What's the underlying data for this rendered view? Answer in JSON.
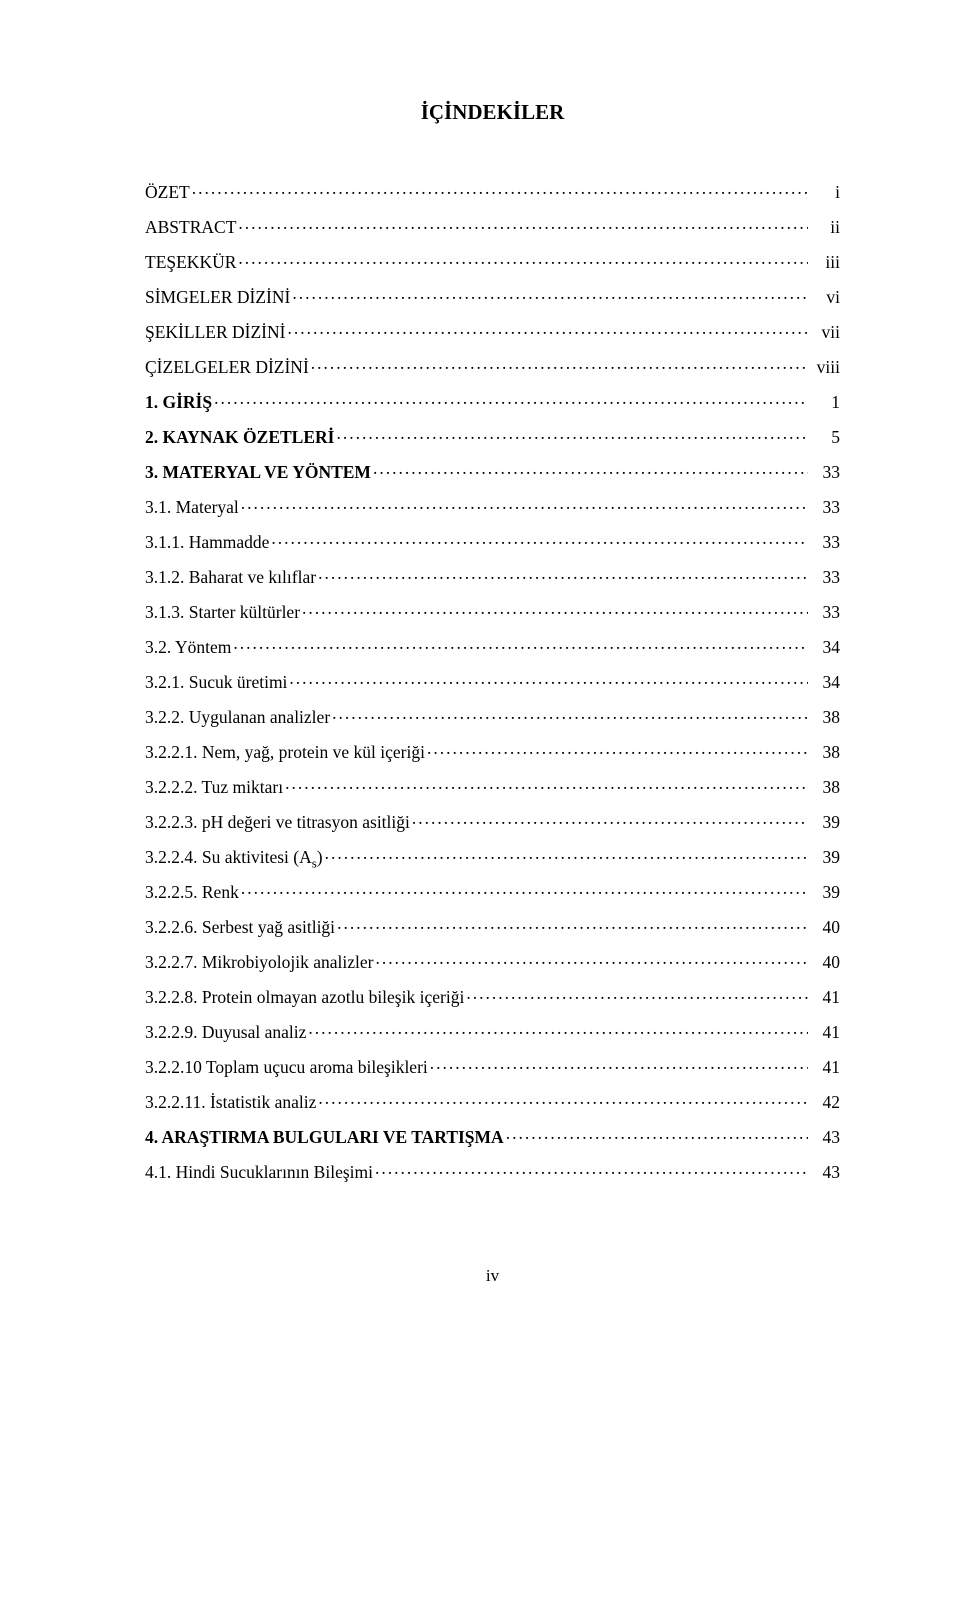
{
  "title": "İÇİNDEKİLER",
  "footer_page": "iv",
  "entries": [
    {
      "label": "ÖZET",
      "page": "i",
      "bold": false
    },
    {
      "label": "ABSTRACT",
      "page": "ii",
      "bold": false
    },
    {
      "label": "TEŞEKKÜR",
      "page": "iii",
      "bold": false
    },
    {
      "label": "SİMGELER DİZİNİ",
      "page": "vi",
      "bold": false
    },
    {
      "label": "ŞEKİLLER DİZİNİ",
      "page": "vii",
      "bold": false
    },
    {
      "label": "ÇİZELGELER DİZİNİ",
      "page": "viii",
      "bold": false
    },
    {
      "label": "1. GİRİŞ",
      "page": "1",
      "bold": true
    },
    {
      "label": "2. KAYNAK ÖZETLERİ",
      "page": "5",
      "bold": true
    },
    {
      "label": "3. MATERYAL VE YÖNTEM",
      "page": "33",
      "bold": true
    },
    {
      "label": "3.1. Materyal",
      "page": "33",
      "bold": false
    },
    {
      "label": "3.1.1. Hammadde",
      "page": "33",
      "bold": false
    },
    {
      "label": "3.1.2. Baharat ve kılıflar",
      "page": "33",
      "bold": false
    },
    {
      "label": "3.1.3. Starter kültürler",
      "page": "33",
      "bold": false
    },
    {
      "label": "3.2. Yöntem",
      "page": "34",
      "bold": false
    },
    {
      "label": "3.2.1. Sucuk üretimi",
      "page": "34",
      "bold": false
    },
    {
      "label": "3.2.2. Uygulanan analizler",
      "page": "38",
      "bold": false
    },
    {
      "label": "3.2.2.1. Nem, yağ, protein ve kül içeriği",
      "page": "38",
      "bold": false
    },
    {
      "label": "3.2.2.2. Tuz miktarı",
      "page": "38",
      "bold": false
    },
    {
      "label": "3.2.2.3. pH değeri ve titrasyon asitliği",
      "page": "39",
      "bold": false
    },
    {
      "label_html": "3.2.2.4. Su aktivitesi (A<span class=\"sub\">s</span>)",
      "page": "39",
      "bold": false
    },
    {
      "label": "3.2.2.5. Renk",
      "page": "39",
      "bold": false
    },
    {
      "label": "3.2.2.6. Serbest yağ asitliği",
      "page": "40",
      "bold": false
    },
    {
      "label": "3.2.2.7. Mikrobiyolojik analizler",
      "page": "40",
      "bold": false
    },
    {
      "label": "3.2.2.8. Protein olmayan azotlu bileşik içeriği",
      "page": "41",
      "bold": false
    },
    {
      "label": "3.2.2.9. Duyusal analiz",
      "page": "41",
      "bold": false
    },
    {
      "label": "3.2.2.10 Toplam uçucu aroma bileşikleri",
      "page": "41",
      "bold": false
    },
    {
      "label": "3.2.2.11. İstatistik analiz",
      "page": "42",
      "bold": false
    },
    {
      "label": "4. ARAŞTIRMA BULGULARI VE TARTIŞMA",
      "page": "43",
      "bold": true
    },
    {
      "label": "4.1. Hindi Sucuklarının Bileşimi",
      "page": "43",
      "bold": false
    }
  ]
}
